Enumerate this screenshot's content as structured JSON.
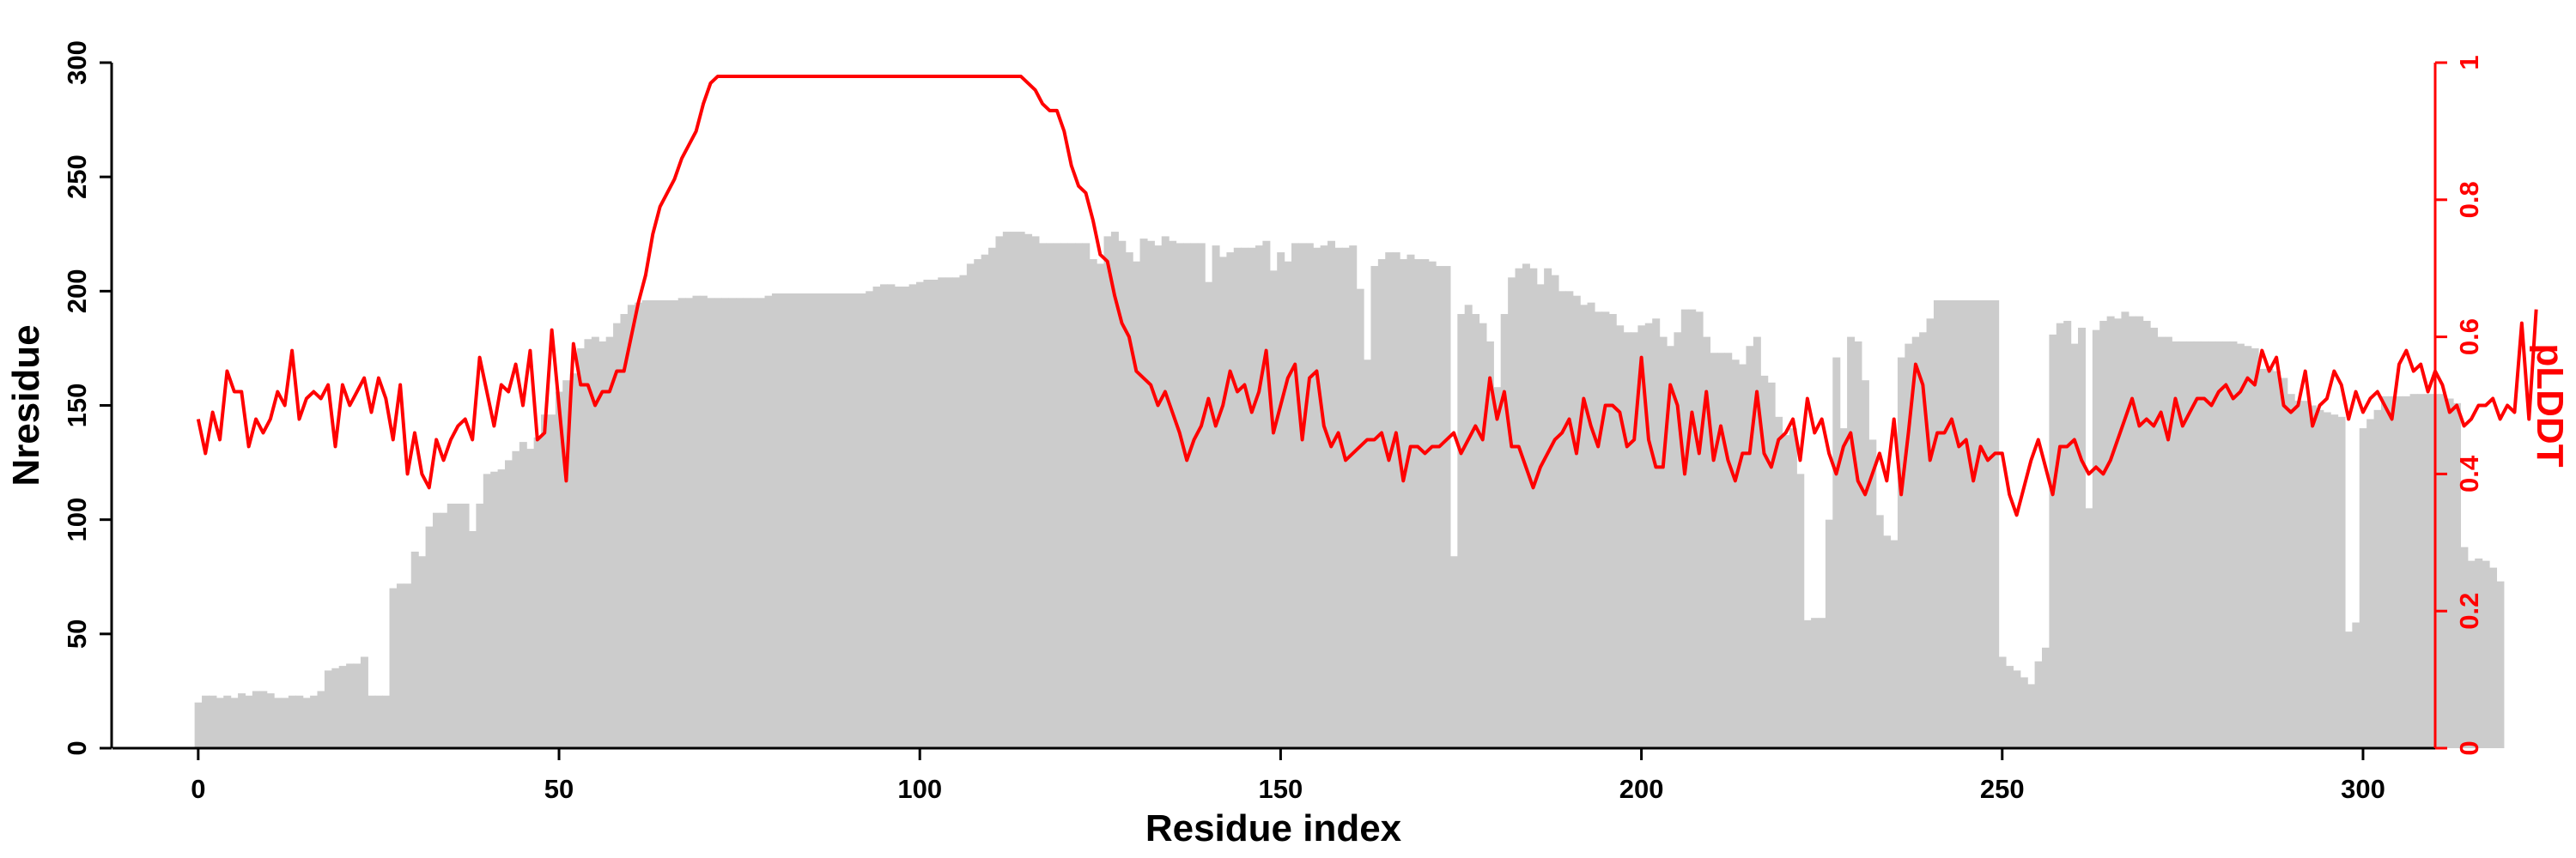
{
  "chart_data": {
    "type": "bar",
    "xlabel": "Residue index",
    "ylabel": "Nresidue",
    "y2label": "pLDDT",
    "xlim": [
      -12,
      310
    ],
    "ylim": [
      0,
      300
    ],
    "y2lim": [
      0,
      1
    ],
    "x_ticks": [
      0,
      50,
      100,
      150,
      200,
      250,
      300
    ],
    "y_ticks": [
      0,
      50,
      100,
      150,
      200,
      250,
      300
    ],
    "y2_ticks": [
      0,
      0.2,
      0.4,
      0.6,
      0.8,
      1
    ],
    "grid": false,
    "colors": {
      "bars": "#cccccc",
      "line": "#ff0000",
      "axis": "#000000"
    },
    "series": [
      {
        "kind": "bar",
        "axis": "left",
        "x_start": 0,
        "values": [
          20,
          23,
          23,
          22,
          23,
          22,
          24,
          23,
          25,
          25,
          24,
          22,
          22,
          23,
          23,
          22,
          23,
          25,
          34,
          35,
          36,
          37,
          37,
          40,
          23,
          23,
          23,
          70,
          72,
          72,
          86,
          84,
          97,
          103,
          103,
          107,
          107,
          107,
          95,
          107,
          120,
          121,
          122,
          126,
          130,
          134,
          131,
          136,
          146,
          146,
          156,
          161,
          164,
          175,
          179,
          180,
          178,
          180,
          186,
          190,
          194,
          195,
          196,
          196,
          196,
          196,
          196,
          197,
          197,
          198,
          198,
          197,
          197,
          197,
          197,
          197,
          197,
          197,
          197,
          198,
          199,
          199,
          199,
          199,
          199,
          199,
          199,
          199,
          199,
          199,
          199,
          199,
          199,
          200,
          202,
          203,
          203,
          202,
          202,
          203,
          204,
          205,
          205,
          206,
          206,
          206,
          207,
          212,
          214,
          216,
          219,
          224,
          226,
          226,
          226,
          225,
          224,
          221,
          221,
          221,
          221,
          221,
          221,
          221,
          214,
          212,
          224,
          226,
          222,
          217,
          213,
          223,
          222,
          220,
          224,
          222,
          221,
          221,
          221,
          221,
          204,
          220,
          215,
          217,
          219,
          219,
          219,
          220,
          222,
          209,
          217,
          213,
          221,
          221,
          221,
          219,
          220,
          222,
          219,
          219,
          220,
          201,
          170,
          211,
          214,
          217,
          217,
          214,
          216,
          214,
          214,
          213,
          211,
          211,
          84,
          190,
          194,
          190,
          186,
          178,
          158,
          190,
          206,
          210,
          212,
          210,
          203,
          210,
          207,
          200,
          200,
          198,
          194,
          195,
          191,
          191,
          190,
          185,
          182,
          182,
          185,
          186,
          188,
          180,
          176,
          182,
          192,
          192,
          191,
          180,
          173,
          173,
          173,
          170,
          168,
          176,
          180,
          163,
          160,
          145,
          137,
          140,
          120,
          56,
          57,
          57,
          100,
          171,
          140,
          180,
          178,
          161,
          135,
          102,
          93,
          91,
          171,
          177,
          180,
          182,
          188,
          196,
          196,
          196,
          196,
          196,
          196,
          196,
          196,
          196,
          40,
          36,
          34,
          31,
          28,
          38,
          44,
          181,
          186,
          187,
          177,
          184,
          105,
          183,
          187,
          189,
          188,
          191,
          189,
          189,
          187,
          184,
          180,
          180,
          178,
          178,
          178,
          178,
          178,
          178,
          178,
          178,
          178,
          177,
          176,
          175,
          166,
          166,
          165,
          162,
          155,
          152,
          152,
          150,
          148,
          147,
          146,
          145,
          51,
          55,
          140,
          144,
          148,
          154,
          154,
          154,
          154,
          155,
          155,
          155,
          155,
          155,
          153,
          151,
          88,
          82,
          83,
          82,
          79,
          73
        ]
      },
      {
        "kind": "line",
        "axis": "right",
        "x_start": 0,
        "values": [
          0.48,
          0.43,
          0.49,
          0.45,
          0.55,
          0.52,
          0.52,
          0.44,
          0.48,
          0.46,
          0.48,
          0.52,
          0.5,
          0.58,
          0.48,
          0.51,
          0.52,
          0.51,
          0.53,
          0.44,
          0.53,
          0.5,
          0.52,
          0.54,
          0.49,
          0.54,
          0.51,
          0.45,
          0.53,
          0.4,
          0.46,
          0.4,
          0.38,
          0.45,
          0.42,
          0.45,
          0.47,
          0.48,
          0.45,
          0.57,
          0.52,
          0.47,
          0.53,
          0.52,
          0.56,
          0.5,
          0.58,
          0.45,
          0.46,
          0.61,
          0.5,
          0.39,
          0.59,
          0.53,
          0.53,
          0.5,
          0.52,
          0.52,
          0.55,
          0.55,
          0.6,
          0.65,
          0.69,
          0.75,
          0.79,
          0.81,
          0.83,
          0.86,
          0.88,
          0.9,
          0.94,
          0.97,
          0.98,
          0.98,
          0.98,
          0.98,
          0.98,
          0.98,
          0.98,
          0.98,
          0.98,
          0.98,
          0.98,
          0.98,
          0.98,
          0.98,
          0.98,
          0.98,
          0.98,
          0.98,
          0.98,
          0.98,
          0.98,
          0.98,
          0.98,
          0.98,
          0.98,
          0.98,
          0.98,
          0.98,
          0.98,
          0.98,
          0.98,
          0.98,
          0.98,
          0.98,
          0.98,
          0.98,
          0.98,
          0.98,
          0.98,
          0.98,
          0.98,
          0.98,
          0.98,
          0.97,
          0.96,
          0.94,
          0.93,
          0.93,
          0.9,
          0.85,
          0.82,
          0.81,
          0.77,
          0.72,
          0.71,
          0.66,
          0.62,
          0.6,
          0.55,
          0.54,
          0.53,
          0.5,
          0.52,
          0.49,
          0.46,
          0.42,
          0.45,
          0.47,
          0.51,
          0.47,
          0.5,
          0.55,
          0.52,
          0.53,
          0.49,
          0.52,
          0.58,
          0.46,
          0.5,
          0.54,
          0.56,
          0.45,
          0.54,
          0.55,
          0.47,
          0.44,
          0.46,
          0.42,
          0.43,
          0.44,
          0.45,
          0.45,
          0.46,
          0.42,
          0.46,
          0.39,
          0.44,
          0.44,
          0.43,
          0.44,
          0.44,
          0.45,
          0.46,
          0.43,
          0.45,
          0.47,
          0.45,
          0.54,
          0.48,
          0.52,
          0.44,
          0.44,
          0.41,
          0.38,
          0.41,
          0.43,
          0.45,
          0.46,
          0.48,
          0.43,
          0.51,
          0.47,
          0.44,
          0.5,
          0.5,
          0.49,
          0.44,
          0.45,
          0.57,
          0.45,
          0.41,
          0.41,
          0.53,
          0.5,
          0.4,
          0.49,
          0.43,
          0.52,
          0.42,
          0.47,
          0.42,
          0.39,
          0.43,
          0.43,
          0.52,
          0.43,
          0.41,
          0.45,
          0.46,
          0.48,
          0.42,
          0.51,
          0.46,
          0.48,
          0.43,
          0.4,
          0.44,
          0.46,
          0.39,
          0.37,
          0.4,
          0.43,
          0.39,
          0.48,
          0.37,
          0.46,
          0.56,
          0.53,
          0.42,
          0.46,
          0.46,
          0.48,
          0.44,
          0.45,
          0.39,
          0.44,
          0.42,
          0.43,
          0.43,
          0.37,
          0.34,
          0.38,
          0.42,
          0.45,
          0.41,
          0.37,
          0.44,
          0.44,
          0.45,
          0.42,
          0.4,
          0.41,
          0.4,
          0.42,
          0.45,
          0.48,
          0.51,
          0.47,
          0.48,
          0.47,
          0.49,
          0.45,
          0.51,
          0.47,
          0.49,
          0.51,
          0.51,
          0.5,
          0.52,
          0.53,
          0.51,
          0.52,
          0.54,
          0.53,
          0.58,
          0.55,
          0.57,
          0.5,
          0.49,
          0.5,
          0.55,
          0.47,
          0.5,
          0.51,
          0.55,
          0.53,
          0.48,
          0.52,
          0.49,
          0.51,
          0.52,
          0.5,
          0.48,
          0.56,
          0.58,
          0.55,
          0.56,
          0.52,
          0.55,
          0.53,
          0.49,
          0.5,
          0.47,
          0.48,
          0.5,
          0.5,
          0.51,
          0.48,
          0.5,
          0.49,
          0.62,
          0.48,
          0.64
        ]
      }
    ]
  }
}
